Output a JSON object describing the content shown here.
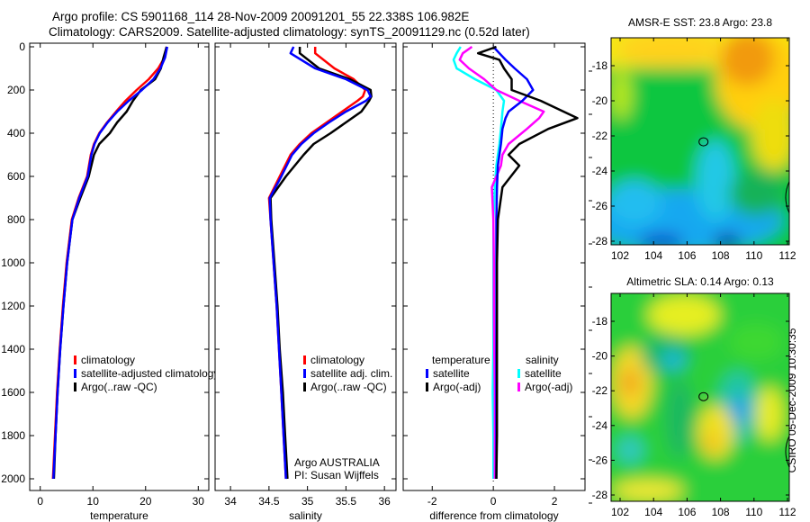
{
  "header": {
    "line1": "Argo profile: CS 5901168_114 28-Nov-2009 20091201_55 22.338S 106.982E",
    "line2": "Climatology: CARS2009. Satellite-adjusted climatology: synTS_20091129.nc (0.52d later)"
  },
  "footer_stamp": "CSIRO 05-Dec-2009 10:30:35",
  "chart_data": [
    {
      "type": "line",
      "name": "temperature",
      "xlabel": "temperature",
      "xlim": [
        -2,
        32
      ],
      "xticks": [
        "0",
        "10",
        "20",
        "30"
      ],
      "xtick_values": [
        0,
        10,
        20,
        30
      ],
      "ylim": [
        0,
        2050
      ],
      "yticks": [
        "0",
        "200",
        "400",
        "600",
        "800",
        "1000",
        "1200",
        "1400",
        "1600",
        "1800",
        "2000"
      ],
      "ytick_values": [
        0,
        200,
        400,
        600,
        800,
        1000,
        1200,
        1400,
        1600,
        1800,
        2000
      ],
      "depth": [
        0,
        50,
        100,
        150,
        200,
        250,
        300,
        350,
        400,
        450,
        500,
        600,
        700,
        800,
        1000,
        1200,
        1400,
        1600,
        1800,
        2000
      ],
      "series": [
        {
          "name": "climatology",
          "color": "#ff0000",
          "values": [
            24,
            23.6,
            22.4,
            20.6,
            18.3,
            16.2,
            14.4,
            12.7,
            11.2,
            10.2,
            9.6,
            8.9,
            7.3,
            6.0,
            5.0,
            4.3,
            3.7,
            3.2,
            2.8,
            2.4
          ]
        },
        {
          "name": "satellite-adjusted climatology",
          "color": "#0000ff",
          "values": [
            24.1,
            23.7,
            22.8,
            21.5,
            19.3,
            16.8,
            14.6,
            12.8,
            11.3,
            10.3,
            9.7,
            9.0,
            7.4,
            6.1,
            5.1,
            4.4,
            3.8,
            3.3,
            2.9,
            2.5
          ]
        },
        {
          "name": "Argo(..raw -QC)",
          "color": "#000000",
          "values": [
            24,
            23.4,
            22.9,
            21.8,
            19.1,
            17.6,
            16.4,
            14.6,
            13.2,
            11.2,
            10.2,
            9.2,
            7.6,
            6.1,
            5.1,
            4.4,
            3.8,
            3.3,
            2.9,
            2.6
          ]
        }
      ],
      "legend": [
        "climatology",
        "satellite-adjusted climatology",
        "Argo(..raw -QC)"
      ]
    },
    {
      "type": "line",
      "name": "salinity",
      "xlabel": "salinity",
      "xlim": [
        33.8,
        36.15
      ],
      "xticks": [
        "34",
        "34.5",
        "35",
        "35.5",
        "36"
      ],
      "xtick_values": [
        34,
        34.5,
        35,
        35.5,
        36
      ],
      "ylim": [
        0,
        2050
      ],
      "depth": [
        0,
        30,
        100,
        150,
        200,
        230,
        250,
        300,
        350,
        400,
        450,
        500,
        600,
        700,
        800,
        1000,
        1200,
        1400,
        1600,
        1800,
        2000
      ],
      "series": [
        {
          "name": "climatology",
          "color": "#ff0000",
          "values": [
            35.1,
            35.1,
            35.35,
            35.6,
            35.75,
            35.72,
            35.65,
            35.45,
            35.25,
            35.05,
            34.9,
            34.78,
            34.64,
            34.5,
            34.52,
            34.56,
            34.6,
            34.63,
            34.66,
            34.69,
            34.72
          ]
        },
        {
          "name": "satellite adj. clim.",
          "color": "#0000ff",
          "values": [
            34.82,
            34.78,
            35.1,
            35.5,
            35.78,
            35.82,
            35.76,
            35.5,
            35.28,
            35.08,
            34.92,
            34.8,
            34.66,
            34.51,
            34.52,
            34.56,
            34.6,
            34.63,
            34.66,
            34.69,
            34.72
          ]
        },
        {
          "name": "Argo(..raw -QC)",
          "color": "#000000",
          "values": [
            34.9,
            34.9,
            35.15,
            35.55,
            35.82,
            35.83,
            35.8,
            35.7,
            35.5,
            35.3,
            35.08,
            34.95,
            34.72,
            34.52,
            34.53,
            34.57,
            34.61,
            34.64,
            34.68,
            34.71,
            34.74
          ]
        }
      ],
      "legend": [
        "climatology",
        "satellite adj. clim.",
        "Argo(..raw -QC)"
      ],
      "annotation": [
        "Argo AUSTRALIA",
        "PI: Susan Wijffels"
      ]
    },
    {
      "type": "line",
      "name": "difference",
      "xlabel": "difference from climatology",
      "xlim": [
        -2.95,
        3
      ],
      "xticks": [
        "-2",
        "0",
        "2"
      ],
      "xtick_values": [
        -2,
        0,
        2
      ],
      "ylim": [
        0,
        2050
      ],
      "depth": [
        0,
        30,
        60,
        100,
        150,
        200,
        250,
        300,
        330,
        380,
        450,
        500,
        550,
        650,
        800,
        1000,
        1200,
        1400,
        1600,
        1800,
        2000
      ],
      "series": [
        {
          "name": "temperature satellite",
          "color": "#0000ff",
          "values": [
            0,
            0.2,
            0.4,
            0.7,
            1.1,
            1.3,
            0.95,
            0.5,
            0.4,
            0.3,
            0.25,
            0.2,
            0.15,
            0.12,
            0.1,
            0.1,
            0.1,
            0.1,
            0.1,
            0.1,
            0.1
          ]
        },
        {
          "name": "temperature Argo(-adj)",
          "color": "#000000",
          "values": [
            0.1,
            -0.5,
            0.2,
            0.35,
            0.6,
            0.6,
            1.55,
            2.3,
            2.75,
            1.8,
            0.85,
            0.5,
            0.85,
            0.3,
            0.15,
            0.12,
            0.12,
            0.12,
            0.12,
            0.12,
            0.1
          ]
        },
        {
          "name": "salinity satellite",
          "color": "#00ffff",
          "values": [
            -1.07,
            -1.2,
            -1.3,
            -1.2,
            -0.6,
            0.1,
            0.35,
            0.3,
            0.28,
            0.25,
            0.2,
            0.15,
            0.1,
            0.05,
            0,
            0,
            0,
            0,
            -0.02,
            0,
            0
          ]
        },
        {
          "name": "salinity Argo(-adj)",
          "color": "#ff00ff",
          "values": [
            -0.7,
            -1.0,
            -1.1,
            -0.8,
            -0.3,
            0.1,
            0.85,
            1.65,
            1.5,
            1.1,
            0.5,
            0.3,
            0.25,
            -0.05,
            0,
            0.02,
            0.02,
            0.03,
            0.05,
            0.05,
            0.05
          ]
        }
      ],
      "legend_headers": [
        "temperature",
        "salinity"
      ],
      "legend": [
        "satellite",
        "Argo(-adj)",
        "satellite",
        "Argo(-adj)"
      ]
    },
    {
      "type": "heatmap",
      "name": "sst-map",
      "title": "AMSR-E SST: 23.8 Argo: 23.8",
      "xticks": [
        "102",
        "104",
        "106",
        "108",
        "110",
        "112"
      ],
      "xtick_values": [
        102,
        104,
        106,
        108,
        110,
        112
      ],
      "yticks": [
        "-18",
        "-20",
        "-22",
        "-24",
        "-26",
        "-28"
      ],
      "ytick_values": [
        -18,
        -20,
        -22,
        -24,
        -26,
        -28
      ],
      "xlim": [
        101.5,
        112.4
      ],
      "ylim": [
        -28.3,
        -16.2
      ],
      "argo_position": [
        106.982,
        -22.338
      ]
    },
    {
      "type": "heatmap",
      "name": "sla-map",
      "title": "Altimetric SLA: 0.14 Argo: 0.13",
      "xticks": [
        "102",
        "104",
        "106",
        "108",
        "110",
        "112"
      ],
      "xtick_values": [
        102,
        104,
        106,
        108,
        110,
        112
      ],
      "yticks": [
        "-18",
        "-20",
        "-22",
        "-24",
        "-26",
        "-28"
      ],
      "ytick_values": [
        -18,
        -20,
        -22,
        -24,
        -26,
        -28
      ],
      "xlim": [
        101.5,
        112.4
      ],
      "ylim": [
        -28.3,
        -16.2
      ],
      "argo_position": [
        106.982,
        -22.338
      ]
    }
  ]
}
